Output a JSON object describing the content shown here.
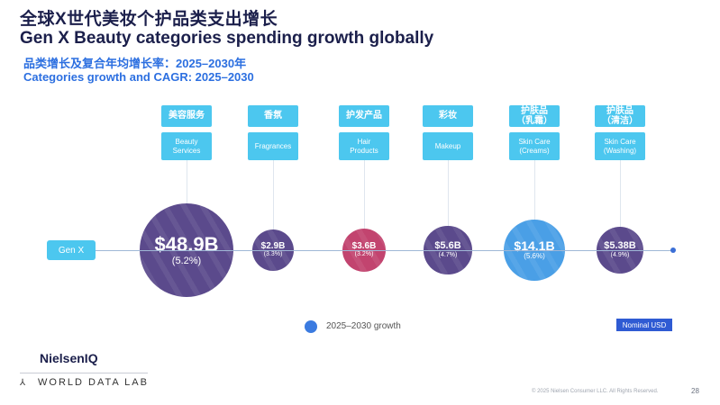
{
  "header": {
    "title_cn": "全球X世代美妆个护品类支出增长",
    "title_en": "Gen X Beauty categories spending growth globally",
    "subtitle_cn": "品类增长及复合年均增长率：2025–2030年",
    "subtitle_en": "Categories growth and CAGR: 2025–2030"
  },
  "genx_label": "Gen X",
  "chart_data": {
    "type": "bubble",
    "unit": "USD billion",
    "categories_cn": [
      "美容服务",
      "香氛",
      "护发产品",
      "彩妆",
      "护肤品\n（乳霜）",
      "护肤品\n（清洁）"
    ],
    "categories": [
      "Beauty Services",
      "Fragrances",
      "Hair Products",
      "Makeup",
      "Skin Care (Creams)",
      "Skin Care (Washing)"
    ],
    "categories_display": [
      "Beauty\nServices",
      "Fragrances",
      "Hair\nProducts",
      "Makeup",
      "Skin Care\n(Creams)",
      "Skin Care\n(Washing)"
    ],
    "values": [
      48.9,
      2.9,
      3.6,
      5.6,
      14.1,
      5.38
    ],
    "value_labels": [
      "$48.9B",
      "$2.9B",
      "$3.6B",
      "$5.6B",
      "$14.1B",
      "$5.38B"
    ],
    "cagr_percent": [
      5.2,
      3.3,
      3.2,
      4.7,
      5.6,
      4.9
    ],
    "cagr_labels": [
      "(5.2%)",
      "(3.3%)",
      "(3.2%)",
      "(4.7%)",
      "(5.6%)",
      "(4.9%)"
    ],
    "colors": [
      "#5b4a8c",
      "#5b4a8c",
      "#c2446f",
      "#5b4a8c",
      "#4a9fe6",
      "#5b4a8c"
    ],
    "legend": "2025–2030 growth",
    "legend_color": "#3b7be0"
  },
  "note": "Nominal USD",
  "footer": {
    "logo": "NielsenIQ",
    "partner": "WORLD DATA LAB",
    "copyright": "© 2025 Nielsen Consumer LLC. All Rights Reserved.",
    "page": "28"
  }
}
